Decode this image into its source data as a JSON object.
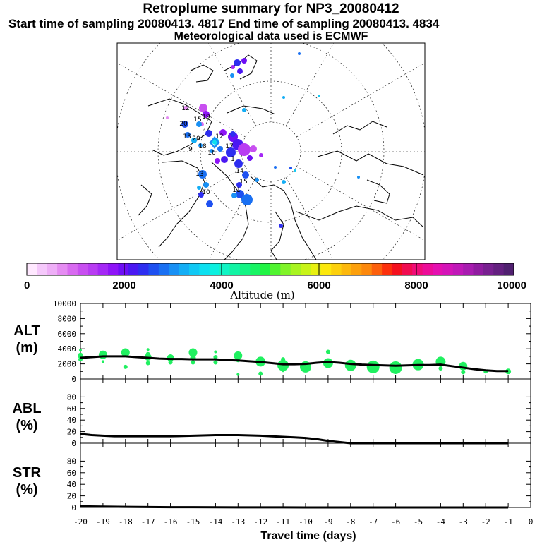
{
  "header": {
    "title": "Retroplume summary for NP3_20080412",
    "sampling": "Start time of sampling 20080413.  4817     End time of sampling 20080413.  4834",
    "met": "Meteorological data used is ECMWF"
  },
  "colorbar": {
    "label": "Altitude (m)",
    "ticks": [
      "0",
      "2000",
      "4000",
      "6000",
      "8000",
      "10000"
    ],
    "colors": [
      "#ffe8ff",
      "#f5c8fb",
      "#eeaef7",
      "#e58cf2",
      "#d86af0",
      "#c84ff0",
      "#b83cf2",
      "#a428f5",
      "#8e14f7",
      "#6e0ef5",
      "#4a18f2",
      "#2e2ef0",
      "#1e50f0",
      "#1a70f2",
      "#1890f4",
      "#14aef5",
      "#10c8f4",
      "#0ce0f0",
      "#0cf0e0",
      "#10f4c4",
      "#12f4a4",
      "#14f484",
      "#18f464",
      "#20f444",
      "#50f430",
      "#80f428",
      "#a8f420",
      "#c8f418",
      "#e8f010",
      "#fce80c",
      "#fcd00c",
      "#fcb80c",
      "#fca00c",
      "#fc880c",
      "#fc600c",
      "#fc300c",
      "#f4101e",
      "#f00c50",
      "#f00c78",
      "#ec0c98",
      "#e410b0",
      "#d414b8",
      "#c018b8",
      "#a81cb0",
      "#901ca0",
      "#782090",
      "#642080",
      "#502070"
    ]
  },
  "map": {
    "cluster_numbers": [
      "12",
      "20",
      "15",
      "13",
      "20",
      "19",
      "18",
      "12",
      "16",
      "17",
      "1",
      "14",
      "15",
      "11",
      "13",
      "10",
      "9"
    ]
  },
  "chart_data": [
    {
      "type": "scatter",
      "name": "ALT",
      "ylabel": "ALT\n(m)",
      "ylabel_lines": [
        "ALT",
        "(m)"
      ],
      "ylim": [
        0,
        10000
      ],
      "yticks": [
        "10000",
        "8000",
        "6000",
        "4000",
        "2000",
        "0"
      ],
      "ytick_values": [
        10000,
        8000,
        6000,
        4000,
        2000,
        0
      ],
      "xlim": [
        -20,
        0
      ],
      "mean_line": {
        "x": [
          -20,
          -19.5,
          -19,
          -18.5,
          -18,
          -17.5,
          -17,
          -16.5,
          -16,
          -15.5,
          -15,
          -14.5,
          -14,
          -13.5,
          -13,
          -12.5,
          -12,
          -11.5,
          -11,
          -10.5,
          -10,
          -9.5,
          -9,
          -8.5,
          -8,
          -7.5,
          -7,
          -6.5,
          -6,
          -5.5,
          -5,
          -4.5,
          -4,
          -3.5,
          -3,
          -2.5,
          -2,
          -1.5,
          -1
        ],
        "y": [
          2800,
          2900,
          3000,
          3000,
          3000,
          2900,
          2800,
          2700,
          2650,
          2650,
          2600,
          2600,
          2600,
          2500,
          2450,
          2350,
          2250,
          2100,
          1950,
          1950,
          2000,
          2150,
          2250,
          2150,
          2000,
          1900,
          1850,
          1800,
          1750,
          1800,
          1850,
          1850,
          1900,
          1700,
          1500,
          1300,
          1150,
          1050,
          1050
        ]
      },
      "clusters": [
        {
          "x": -20,
          "y": 3800,
          "r": 2
        },
        {
          "x": -20,
          "y": 3100,
          "r": 4
        },
        {
          "x": -20,
          "y": 2600,
          "r": 3
        },
        {
          "x": -19,
          "y": 3200,
          "r": 6
        },
        {
          "x": -19,
          "y": 2300,
          "r": 2
        },
        {
          "x": -18,
          "y": 3500,
          "r": 6
        },
        {
          "x": -18,
          "y": 1600,
          "r": 3
        },
        {
          "x": -17,
          "y": 3900,
          "r": 2
        },
        {
          "x": -17,
          "y": 3300,
          "r": 3
        },
        {
          "x": -17,
          "y": 2900,
          "r": 5
        },
        {
          "x": -17,
          "y": 2100,
          "r": 3
        },
        {
          "x": -16,
          "y": 2800,
          "r": 5
        },
        {
          "x": -16,
          "y": 2200,
          "r": 3
        },
        {
          "x": -15,
          "y": 3500,
          "r": 6
        },
        {
          "x": -15,
          "y": 2800,
          "r": 4
        },
        {
          "x": -15,
          "y": 2200,
          "r": 3
        },
        {
          "x": -14,
          "y": 3600,
          "r": 2
        },
        {
          "x": -14,
          "y": 2900,
          "r": 3
        },
        {
          "x": -14,
          "y": 2200,
          "r": 3
        },
        {
          "x": -13,
          "y": 3100,
          "r": 6
        },
        {
          "x": -13,
          "y": 2500,
          "r": 3
        },
        {
          "x": -13,
          "y": 600,
          "r": 2
        },
        {
          "x": -12,
          "y": 2300,
          "r": 7
        },
        {
          "x": -12,
          "y": 700,
          "r": 3
        },
        {
          "x": -11,
          "y": 2600,
          "r": 3
        },
        {
          "x": -11,
          "y": 1800,
          "r": 8
        },
        {
          "x": -11,
          "y": 1100,
          "r": 2
        },
        {
          "x": -10,
          "y": 1600,
          "r": 8
        },
        {
          "x": -9,
          "y": 3600,
          "r": 3
        },
        {
          "x": -9,
          "y": 2100,
          "r": 7
        },
        {
          "x": -8,
          "y": 1800,
          "r": 8
        },
        {
          "x": -7,
          "y": 1600,
          "r": 9
        },
        {
          "x": -6,
          "y": 1500,
          "r": 9
        },
        {
          "x": -5,
          "y": 1900,
          "r": 8
        },
        {
          "x": -4,
          "y": 2300,
          "r": 7
        },
        {
          "x": -4,
          "y": 1400,
          "r": 3
        },
        {
          "x": -3,
          "y": 1700,
          "r": 6
        },
        {
          "x": -3,
          "y": 900,
          "r": 3
        },
        {
          "x": -2,
          "y": 1000,
          "r": 3
        },
        {
          "x": -1,
          "y": 1000,
          "r": 4
        }
      ]
    },
    {
      "type": "line",
      "name": "ABL",
      "ylabel": "ABL\n(%)",
      "ylabel_lines": [
        "ABL",
        "(%)"
      ],
      "ylim": [
        0,
        100
      ],
      "yticks": [
        "80",
        "60",
        "40",
        "20",
        "0"
      ],
      "ytick_values": [
        80,
        60,
        40,
        20,
        0
      ],
      "xlim": [
        -20,
        0
      ],
      "x": [
        -20,
        -19.5,
        -19,
        -18.5,
        -18,
        -17,
        -16,
        -15,
        -14,
        -13,
        -12,
        -11,
        -10.5,
        -10,
        -9.5,
        -9,
        -8.5,
        -8,
        -7,
        -6,
        -5,
        -4,
        -3,
        -2,
        -1
      ],
      "y": [
        16,
        14,
        13,
        12,
        12,
        12,
        12,
        13,
        14,
        14,
        13,
        11,
        10,
        9,
        7,
        4,
        2,
        0,
        0,
        0,
        0,
        0,
        0,
        0,
        0
      ]
    },
    {
      "type": "line",
      "name": "STR",
      "ylabel": "STR\n(%)",
      "ylabel_lines": [
        "STR",
        "(%)"
      ],
      "ylim": [
        0,
        100
      ],
      "yticks": [
        "80",
        "60",
        "40",
        "20",
        "0"
      ],
      "ytick_values": [
        80,
        60,
        40,
        20,
        0
      ],
      "xlim": [
        -20,
        0
      ],
      "x": [
        -20,
        -19,
        -18,
        -17,
        -16,
        -15,
        -14,
        -13,
        -12,
        -11,
        -10,
        -9,
        -8,
        -7,
        -6,
        -5,
        -4,
        -3,
        -2,
        -1
      ],
      "y": [
        2,
        1.5,
        1,
        0.8,
        0.5,
        0.4,
        0.3,
        0.2,
        0.2,
        0.1,
        0,
        0,
        0,
        0,
        0,
        0,
        0,
        0,
        0,
        0
      ]
    }
  ],
  "xaxis": {
    "label": "Travel time (days)",
    "ticks": [
      "-20",
      "-19",
      "-18",
      "-17",
      "-16",
      "-15",
      "-14",
      "-13",
      "-12",
      "-11",
      "-10",
      "-9",
      "-8",
      "-7",
      "-6",
      "-5",
      "-4",
      "-3",
      "-2",
      "-1",
      "0"
    ],
    "tick_values": [
      -20,
      -19,
      -18,
      -17,
      -16,
      -15,
      -14,
      -13,
      -12,
      -11,
      -10,
      -9,
      -8,
      -7,
      -6,
      -5,
      -4,
      -3,
      -2,
      -1,
      0
    ]
  },
  "dot_color": "#20f060"
}
